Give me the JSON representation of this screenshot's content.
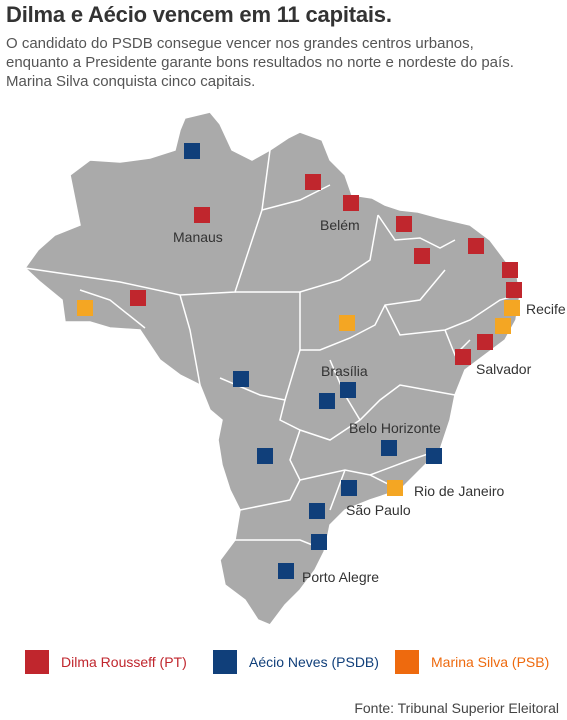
{
  "title": "Dilma e Aécio vencem em 11 capitais.",
  "subtitle_lines": [
    "O candidato do PSDB consegue vencer nos grandes centros urbanos,",
    "enquanto a Presidente garante bons resultados no norte e nordeste do país.",
    "Marina Silva conquista cinco capitais."
  ],
  "colors": {
    "dilma": "#c0262d",
    "aecio": "#103f7a",
    "marina": "#f4a623",
    "marina_legend": "#ee6a0e",
    "map_fill": "#aaaaaa",
    "map_border": "#ffffff"
  },
  "city_labels": {
    "manaus": "Manaus",
    "belem": "Belém",
    "recife": "Recife",
    "salvador": "Salvador",
    "brasilia": "Brasília",
    "belo_horizonte": "Belo Horizonte",
    "rio_de_janeiro": "Rio de Janeiro",
    "sao_paulo": "São Paulo",
    "porto_alegre": "Porto Alegre"
  },
  "capital_winners": {
    "dilma": [
      "Manaus",
      "Rio Branco",
      "Macapá",
      "Belém",
      "São Luís",
      "Teresina",
      "Fortaleza",
      "Natal",
      "João Pessoa",
      "Maceió",
      "Salvador"
    ],
    "aecio": [
      "Boa Vista",
      "Cuiabá",
      "Goiânia",
      "Brasília",
      "Campo Grande",
      "Belo Horizonte",
      "Vitória",
      "São Paulo",
      "Curitiba",
      "Florianópolis",
      "Porto Alegre"
    ],
    "marina": [
      "Porto Velho",
      "Palmas",
      "Recife",
      "Aracaju",
      "Rio de Janeiro"
    ]
  },
  "legend": [
    {
      "label": "Dilma Rousseff (PT)",
      "color": "#c0262d",
      "text_color": "#c0262d"
    },
    {
      "label": "Aécio Neves (PSDB)",
      "color": "#103f7a",
      "text_color": "#103f7a"
    },
    {
      "label": "Marina Silva (PSB)",
      "color": "#ee6a0e",
      "text_color": "#ee6a0e"
    }
  ],
  "source": "Fonte: Tribunal Superior Eleitoral"
}
